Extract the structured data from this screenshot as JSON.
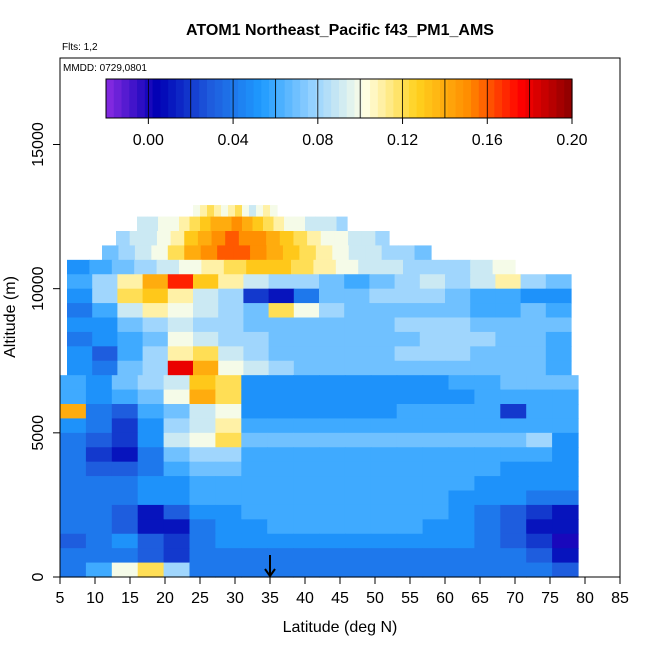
{
  "chart_data": {
    "type": "heatmap",
    "title": "ATOM1 Northeast_Pacific f43_PM1_AMS",
    "annotations": {
      "flights": "Flts: 1,2",
      "dates": "MMDD: 0729,0801"
    },
    "xlabel": "Latitude (deg N)",
    "ylabel": "Altitude (m)",
    "xlim": [
      5,
      85
    ],
    "ylim": [
      0,
      18000
    ],
    "x_ticks": [
      "5",
      "10",
      "15",
      "20",
      "25",
      "30",
      "35",
      "40",
      "45",
      "50",
      "55",
      "60",
      "65",
      "70",
      "75",
      "80",
      "85"
    ],
    "y_ticks": [
      "0",
      "5000",
      "10000",
      "15000"
    ],
    "colorbar": {
      "range": [
        -0.02,
        0.2
      ],
      "tick_labels": [
        "0.00",
        "0.04",
        "0.08",
        "0.12",
        "0.16",
        "0.20"
      ],
      "tick_values": [
        0,
        0.04,
        0.08,
        0.12,
        0.16,
        0.2
      ],
      "colors": [
        "#8a2be2",
        "#0000b4",
        "#1e5adc",
        "#1e9bff",
        "#96d2ff",
        "#ffffe6",
        "#ffd21e",
        "#ff8c00",
        "#ff0000",
        "#8b0000"
      ]
    },
    "marker_latitude": 35,
    "rows": [
      {
        "y0": 12500,
        "y1": 12900,
        "x0": 24,
        "x1": 36,
        "values": [
          0.1,
          0.11,
          0.12,
          0.11,
          0.1,
          0.11,
          0.12,
          0.1,
          0.09,
          0.1,
          0.11,
          0.1
        ]
      },
      {
        "y0": 12000,
        "y1": 12500,
        "x0": 16,
        "x1": 46,
        "values": [
          0.09,
          0.09,
          0.1,
          0.1,
          0.11,
          0.12,
          0.13,
          0.14,
          0.14,
          0.15,
          0.14,
          0.13,
          0.12,
          0.11,
          0.1,
          0.1,
          0.09,
          0.09,
          0.09,
          0.08
        ]
      },
      {
        "y0": 11500,
        "y1": 12000,
        "x0": 13,
        "x1": 52,
        "values": [
          0.08,
          0.09,
          0.09,
          0.1,
          0.11,
          0.13,
          0.14,
          0.15,
          0.16,
          0.15,
          0.15,
          0.14,
          0.13,
          0.12,
          0.11,
          0.1,
          0.1,
          0.09,
          0.09,
          0.08
        ]
      },
      {
        "y0": 11000,
        "y1": 11500,
        "x0": 11,
        "x1": 58,
        "values": [
          0.07,
          0.08,
          0.09,
          0.1,
          0.12,
          0.14,
          0.15,
          0.16,
          0.16,
          0.15,
          0.14,
          0.13,
          0.12,
          0.11,
          0.1,
          0.09,
          0.09,
          0.08,
          0.08,
          0.07
        ]
      },
      {
        "y0": 10500,
        "y1": 11000,
        "x0": 6,
        "x1": 70,
        "values": [
          0.05,
          0.06,
          0.07,
          0.08,
          0.09,
          0.1,
          0.11,
          0.12,
          0.13,
          0.13,
          0.12,
          0.11,
          0.1,
          0.09,
          0.09,
          0.08,
          0.08,
          0.08,
          0.09,
          0.1
        ]
      },
      {
        "y0": 10000,
        "y1": 10500,
        "x0": 6,
        "x1": 78,
        "values": [
          0.06,
          0.08,
          0.11,
          0.14,
          0.17,
          0.13,
          0.11,
          0.09,
          0.08,
          0.08,
          0.07,
          0.06,
          0.07,
          0.08,
          0.09,
          0.08,
          0.09,
          0.11,
          0.08,
          0.07
        ]
      },
      {
        "y0": 9500,
        "y1": 10000,
        "x0": 6,
        "x1": 78,
        "values": [
          0.05,
          0.08,
          0.12,
          0.13,
          0.11,
          0.09,
          0.08,
          0.02,
          0.01,
          0.04,
          0.07,
          0.07,
          0.08,
          0.08,
          0.08,
          0.07,
          0.06,
          0.06,
          0.05,
          0.05
        ]
      },
      {
        "y0": 9000,
        "y1": 9500,
        "x0": 6,
        "x1": 78,
        "values": [
          0.04,
          0.06,
          0.09,
          0.11,
          0.1,
          0.09,
          0.08,
          0.07,
          0.12,
          0.1,
          0.08,
          0.07,
          0.07,
          0.07,
          0.07,
          0.07,
          0.06,
          0.06,
          0.07,
          0.06
        ]
      },
      {
        "y0": 8500,
        "y1": 9000,
        "x0": 6,
        "x1": 78,
        "values": [
          0.05,
          0.05,
          0.07,
          0.08,
          0.09,
          0.08,
          0.08,
          0.07,
          0.07,
          0.07,
          0.07,
          0.07,
          0.07,
          0.08,
          0.08,
          0.08,
          0.07,
          0.07,
          0.07,
          0.07
        ]
      },
      {
        "y0": 8000,
        "y1": 8500,
        "x0": 6,
        "x1": 78,
        "values": [
          0.04,
          0.05,
          0.06,
          0.07,
          0.1,
          0.09,
          0.08,
          0.08,
          0.07,
          0.07,
          0.07,
          0.07,
          0.07,
          0.07,
          0.08,
          0.08,
          0.08,
          0.07,
          0.07,
          0.06
        ]
      },
      {
        "y0": 7500,
        "y1": 8000,
        "x0": 6,
        "x1": 78,
        "values": [
          0.05,
          0.03,
          0.06,
          0.08,
          0.11,
          0.12,
          0.09,
          0.08,
          0.07,
          0.07,
          0.07,
          0.07,
          0.07,
          0.08,
          0.08,
          0.08,
          0.07,
          0.07,
          0.07,
          0.06
        ]
      },
      {
        "y0": 7000,
        "y1": 7500,
        "x0": 6,
        "x1": 78,
        "values": [
          0.05,
          0.04,
          0.07,
          0.08,
          0.18,
          0.14,
          0.1,
          0.09,
          0.08,
          0.07,
          0.07,
          0.07,
          0.07,
          0.07,
          0.07,
          0.07,
          0.07,
          0.07,
          0.07,
          0.06
        ]
      },
      {
        "y0": 6500,
        "y1": 7000,
        "x0": 5,
        "x1": 79,
        "values": [
          0.06,
          0.05,
          0.07,
          0.08,
          0.09,
          0.13,
          0.12,
          0.05,
          0.05,
          0.05,
          0.05,
          0.05,
          0.05,
          0.05,
          0.05,
          0.06,
          0.06,
          0.07,
          0.07,
          0.07
        ]
      },
      {
        "y0": 6000,
        "y1": 6500,
        "x0": 5,
        "x1": 79,
        "values": [
          0.06,
          0.05,
          0.06,
          0.07,
          0.1,
          0.14,
          0.12,
          0.05,
          0.05,
          0.05,
          0.05,
          0.05,
          0.05,
          0.05,
          0.05,
          0.05,
          0.06,
          0.06,
          0.06,
          0.06
        ]
      },
      {
        "y0": 5500,
        "y1": 6000,
        "x0": 5,
        "x1": 79,
        "values": [
          0.14,
          0.04,
          0.03,
          0.06,
          0.07,
          0.09,
          0.1,
          0.05,
          0.05,
          0.05,
          0.05,
          0.05,
          0.05,
          0.06,
          0.06,
          0.06,
          0.06,
          0.02,
          0.06,
          0.06
        ]
      },
      {
        "y0": 5000,
        "y1": 5500,
        "x0": 5,
        "x1": 79,
        "values": [
          0.05,
          0.04,
          0.02,
          0.05,
          0.08,
          0.09,
          0.11,
          0.06,
          0.06,
          0.06,
          0.06,
          0.06,
          0.06,
          0.06,
          0.06,
          0.06,
          0.06,
          0.06,
          0.06,
          0.06
        ]
      },
      {
        "y0": 4500,
        "y1": 5000,
        "x0": 5,
        "x1": 79,
        "values": [
          0.04,
          0.03,
          0.02,
          0.05,
          0.09,
          0.1,
          0.12,
          0.07,
          0.07,
          0.07,
          0.07,
          0.07,
          0.07,
          0.07,
          0.07,
          0.07,
          0.07,
          0.07,
          0.08,
          0.05
        ]
      },
      {
        "y0": 4000,
        "y1": 4500,
        "x0": 5,
        "x1": 79,
        "values": [
          0.04,
          0.02,
          0.01,
          0.04,
          0.07,
          0.08,
          0.08,
          0.06,
          0.06,
          0.06,
          0.06,
          0.06,
          0.06,
          0.06,
          0.06,
          0.06,
          0.06,
          0.06,
          0.06,
          0.05
        ]
      },
      {
        "y0": 3500,
        "y1": 4000,
        "x0": 5,
        "x1": 79,
        "values": [
          0.04,
          0.03,
          0.03,
          0.04,
          0.06,
          0.07,
          0.07,
          0.06,
          0.06,
          0.06,
          0.06,
          0.06,
          0.06,
          0.06,
          0.06,
          0.06,
          0.06,
          0.05,
          0.05,
          0.05
        ]
      },
      {
        "y0": 3000,
        "y1": 3500,
        "x0": 5,
        "x1": 79,
        "values": [
          0.04,
          0.04,
          0.04,
          0.05,
          0.05,
          0.06,
          0.06,
          0.06,
          0.06,
          0.06,
          0.06,
          0.06,
          0.06,
          0.06,
          0.06,
          0.06,
          0.05,
          0.05,
          0.05,
          0.05
        ]
      },
      {
        "y0": 2500,
        "y1": 3000,
        "x0": 5,
        "x1": 79,
        "values": [
          0.04,
          0.04,
          0.04,
          0.05,
          0.05,
          0.06,
          0.06,
          0.06,
          0.06,
          0.06,
          0.06,
          0.06,
          0.06,
          0.06,
          0.06,
          0.05,
          0.05,
          0.05,
          0.04,
          0.04
        ]
      },
      {
        "y0": 2000,
        "y1": 2500,
        "x0": 5,
        "x1": 79,
        "values": [
          0.04,
          0.04,
          0.03,
          0.01,
          0.03,
          0.05,
          0.05,
          0.06,
          0.06,
          0.06,
          0.06,
          0.06,
          0.06,
          0.06,
          0.06,
          0.05,
          0.04,
          0.03,
          0.02,
          0.01
        ]
      },
      {
        "y0": 1500,
        "y1": 2000,
        "x0": 5,
        "x1": 79,
        "values": [
          0.04,
          0.04,
          0.03,
          0.01,
          0.01,
          0.04,
          0.05,
          0.05,
          0.06,
          0.06,
          0.06,
          0.06,
          0.06,
          0.06,
          0.05,
          0.05,
          0.04,
          0.03,
          0.01,
          0.01
        ]
      },
      {
        "y0": 1000,
        "y1": 1500,
        "x0": 5,
        "x1": 79,
        "values": [
          0.03,
          0.04,
          0.05,
          0.03,
          0.02,
          0.04,
          0.05,
          0.05,
          0.05,
          0.05,
          0.05,
          0.05,
          0.05,
          0.05,
          0.05,
          0.05,
          0.04,
          0.03,
          0.02,
          0.0
        ]
      },
      {
        "y0": 500,
        "y1": 1000,
        "x0": 5,
        "x1": 79,
        "values": [
          0.04,
          0.04,
          0.04,
          0.03,
          0.02,
          0.04,
          0.04,
          0.04,
          0.04,
          0.04,
          0.04,
          0.04,
          0.04,
          0.04,
          0.04,
          0.04,
          0.04,
          0.04,
          0.03,
          0.01
        ]
      },
      {
        "y0": 0,
        "y1": 500,
        "x0": 5,
        "x1": 79,
        "values": [
          0.04,
          0.06,
          0.1,
          0.12,
          0.08,
          0.04,
          0.04,
          0.04,
          0.04,
          0.04,
          0.04,
          0.04,
          0.04,
          0.04,
          0.04,
          0.04,
          0.04,
          0.04,
          0.04,
          0.03
        ]
      }
    ]
  }
}
